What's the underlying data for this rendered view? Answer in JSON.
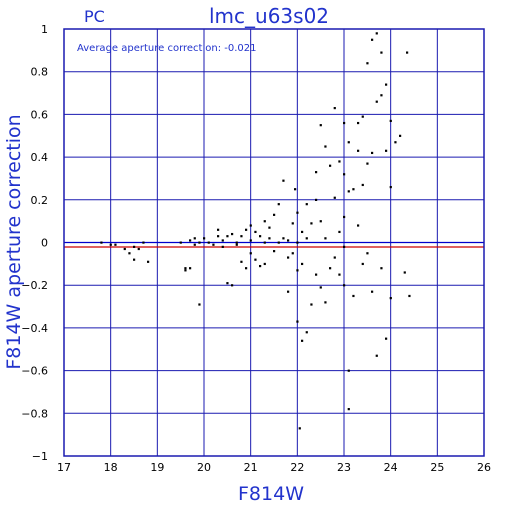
{
  "chart_data": {
    "type": "scatter",
    "title": "lmc_u63s02",
    "subtitle": "PC",
    "annotation": "Average aperture correction: -0.021",
    "xlabel": "F814W",
    "ylabel": "F814W aperture correction",
    "xlim": [
      17,
      26
    ],
    "ylim": [
      -1,
      1
    ],
    "xticks": [
      17,
      18,
      19,
      20,
      21,
      22,
      23,
      24,
      25,
      26
    ],
    "yticks": [
      -1,
      -0.8,
      -0.6,
      -0.4,
      -0.2,
      0,
      0.2,
      0.4,
      0.6,
      0.8,
      1
    ],
    "ytick_labels": [
      "−1",
      "−0.8",
      "−0.6",
      "−0.4",
      "−0.2",
      "0",
      "0.2",
      "0.4",
      "0.6",
      "0.8",
      "1"
    ],
    "grid": true,
    "reference_lines": [
      {
        "y": 0,
        "color": "#0000cc"
      },
      {
        "y": -0.021,
        "color": "#cc0000"
      }
    ],
    "colors": {
      "grid": "#1a1ab0",
      "axis_text": "#2233cc",
      "points": "#000000"
    },
    "points": [
      [
        17.8,
        0.0
      ],
      [
        18.0,
        -0.01
      ],
      [
        18.1,
        -0.01
      ],
      [
        18.3,
        -0.03
      ],
      [
        18.4,
        -0.05
      ],
      [
        18.5,
        -0.02
      ],
      [
        18.5,
        -0.08
      ],
      [
        18.6,
        -0.03
      ],
      [
        18.7,
        0.0
      ],
      [
        18.8,
        -0.09
      ],
      [
        19.5,
        0.0
      ],
      [
        19.6,
        -0.12
      ],
      [
        19.6,
        -0.13
      ],
      [
        19.7,
        -0.12
      ],
      [
        19.7,
        0.01
      ],
      [
        19.8,
        0.02
      ],
      [
        19.8,
        -0.01
      ],
      [
        19.9,
        0.0
      ],
      [
        19.9,
        -0.29
      ],
      [
        20.0,
        0.02
      ],
      [
        20.1,
        0.0
      ],
      [
        20.2,
        -0.01
      ],
      [
        20.3,
        0.06
      ],
      [
        20.3,
        0.03
      ],
      [
        20.4,
        -0.02
      ],
      [
        20.4,
        0.01
      ],
      [
        20.5,
        -0.19
      ],
      [
        20.5,
        0.03
      ],
      [
        20.6,
        -0.2
      ],
      [
        20.6,
        0.04
      ],
      [
        20.7,
        0.0
      ],
      [
        20.7,
        -0.01
      ],
      [
        20.8,
        0.03
      ],
      [
        20.8,
        -0.09
      ],
      [
        20.9,
        0.06
      ],
      [
        20.9,
        -0.12
      ],
      [
        21.0,
        0.01
      ],
      [
        21.0,
        0.08
      ],
      [
        21.0,
        -0.05
      ],
      [
        21.1,
        0.05
      ],
      [
        21.1,
        -0.08
      ],
      [
        21.2,
        0.03
      ],
      [
        21.2,
        -0.11
      ],
      [
        21.3,
        0.1
      ],
      [
        21.3,
        0.0
      ],
      [
        21.3,
        -0.1
      ],
      [
        21.4,
        0.07
      ],
      [
        21.4,
        0.02
      ],
      [
        21.5,
        0.13
      ],
      [
        21.5,
        -0.04
      ],
      [
        21.6,
        0.18
      ],
      [
        21.6,
        0.0
      ],
      [
        21.7,
        0.02
      ],
      [
        21.7,
        0.29
      ],
      [
        21.8,
        0.01
      ],
      [
        21.8,
        -0.07
      ],
      [
        21.8,
        -0.23
      ],
      [
        21.9,
        0.09
      ],
      [
        21.9,
        -0.05
      ],
      [
        21.95,
        0.25
      ],
      [
        22.0,
        0.14
      ],
      [
        22.0,
        0.0
      ],
      [
        22.0,
        -0.13
      ],
      [
        22.0,
        -0.37
      ],
      [
        22.05,
        -0.87
      ],
      [
        22.1,
        -0.1
      ],
      [
        22.1,
        0.05
      ],
      [
        22.1,
        -0.46
      ],
      [
        22.2,
        0.18
      ],
      [
        22.2,
        0.02
      ],
      [
        22.2,
        -0.42
      ],
      [
        22.3,
        -0.29
      ],
      [
        22.3,
        0.09
      ],
      [
        22.4,
        0.33
      ],
      [
        22.4,
        -0.15
      ],
      [
        22.4,
        0.2
      ],
      [
        22.5,
        0.55
      ],
      [
        22.5,
        -0.21
      ],
      [
        22.5,
        0.1
      ],
      [
        22.6,
        -0.28
      ],
      [
        22.6,
        0.45
      ],
      [
        22.6,
        0.02
      ],
      [
        22.7,
        0.36
      ],
      [
        22.7,
        -0.12
      ],
      [
        22.8,
        0.63
      ],
      [
        22.8,
        0.21
      ],
      [
        22.8,
        -0.07
      ],
      [
        22.9,
        0.38
      ],
      [
        22.9,
        -0.15
      ],
      [
        22.9,
        0.05
      ],
      [
        23.0,
        0.56
      ],
      [
        23.0,
        0.32
      ],
      [
        23.0,
        0.12
      ],
      [
        23.0,
        -0.02
      ],
      [
        23.0,
        -0.2
      ],
      [
        23.1,
        0.47
      ],
      [
        23.1,
        0.24
      ],
      [
        23.1,
        -0.6
      ],
      [
        23.1,
        -0.78
      ],
      [
        23.2,
        0.25
      ],
      [
        23.2,
        -0.25
      ],
      [
        23.3,
        0.56
      ],
      [
        23.3,
        0.08
      ],
      [
        23.3,
        0.43
      ],
      [
        23.4,
        0.59
      ],
      [
        23.4,
        0.27
      ],
      [
        23.4,
        -0.1
      ],
      [
        23.5,
        0.84
      ],
      [
        23.5,
        0.37
      ],
      [
        23.5,
        -0.05
      ],
      [
        23.6,
        0.95
      ],
      [
        23.6,
        0.42
      ],
      [
        23.6,
        -0.23
      ],
      [
        23.7,
        0.98
      ],
      [
        23.7,
        0.66
      ],
      [
        23.7,
        -0.53
      ],
      [
        23.8,
        0.89
      ],
      [
        23.8,
        0.69
      ],
      [
        23.8,
        -0.12
      ],
      [
        23.9,
        0.74
      ],
      [
        23.9,
        0.43
      ],
      [
        23.9,
        -0.45
      ],
      [
        24.0,
        0.57
      ],
      [
        24.0,
        0.26
      ],
      [
        24.0,
        -0.26
      ],
      [
        24.1,
        0.47
      ],
      [
        24.2,
        0.5
      ],
      [
        24.3,
        -0.14
      ],
      [
        24.35,
        0.89
      ],
      [
        24.4,
        -0.25
      ]
    ]
  }
}
